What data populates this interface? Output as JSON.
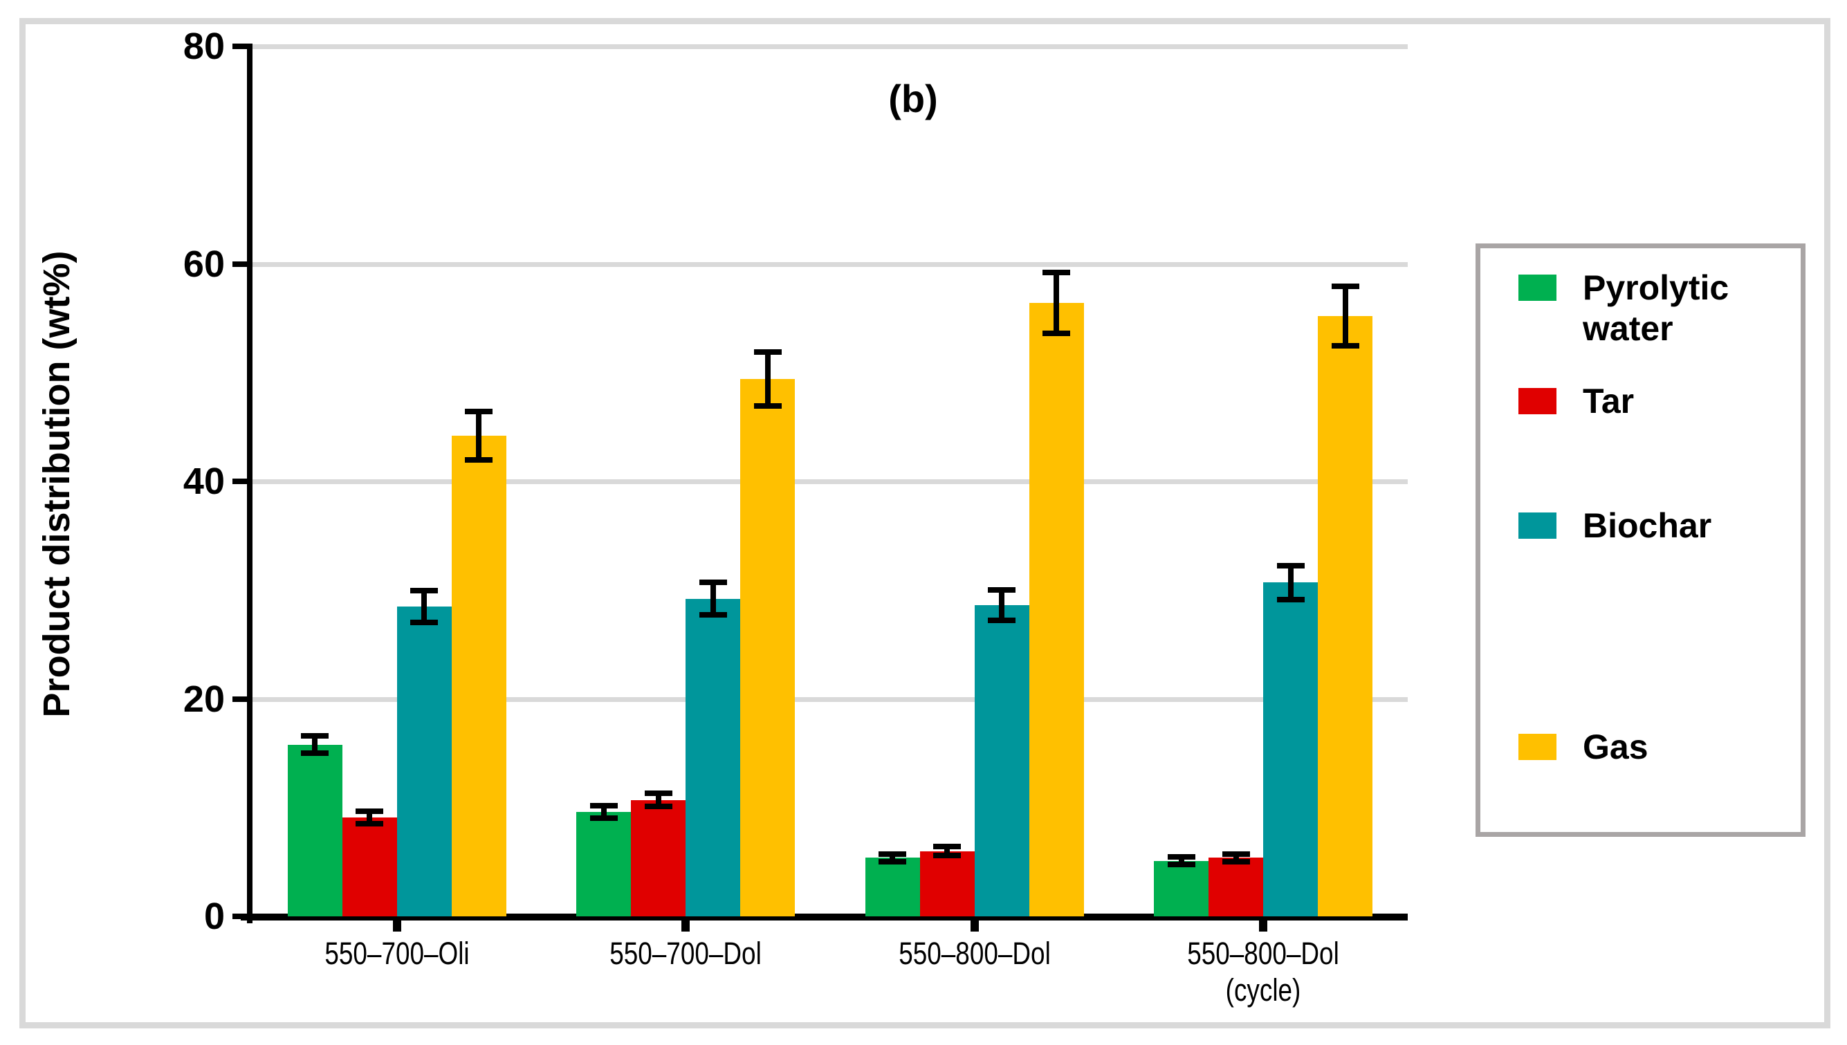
{
  "chart_data": {
    "type": "bar",
    "title": "(b)",
    "ylabel": "Product distribution (wt%)",
    "xlabel": "",
    "ylim": [
      0,
      80
    ],
    "yticks": [
      0,
      20,
      40,
      60,
      80
    ],
    "grid": true,
    "legend_position": "right",
    "categories": [
      "550–700–Oli",
      "550–700–Dol",
      "550–800–Dol",
      "550–800–Dol (cycle)"
    ],
    "categories_lines": [
      [
        "550–700–Oli"
      ],
      [
        "550–700–Dol"
      ],
      [
        "550–800–Dol"
      ],
      [
        "550–800–Dol",
        "(cycle)"
      ]
    ],
    "series": [
      {
        "name": "Pyrolytic water",
        "color": "#00B050",
        "values": [
          15.8,
          9.6,
          5.4,
          5.1
        ],
        "errors": [
          0.8,
          0.55,
          0.35,
          0.35
        ]
      },
      {
        "name": "Tar",
        "color": "#E00000",
        "values": [
          9.1,
          10.7,
          6.0,
          5.4
        ],
        "errors": [
          0.55,
          0.6,
          0.4,
          0.35
        ]
      },
      {
        "name": "Biochar",
        "color": "#00969B",
        "values": [
          28.5,
          29.2,
          28.6,
          30.7
        ],
        "errors": [
          1.45,
          1.5,
          1.4,
          1.55
        ]
      },
      {
        "name": "Gas",
        "color": "#FFC000",
        "values": [
          44.2,
          49.4,
          56.4,
          55.2
        ],
        "errors": [
          2.2,
          2.5,
          2.8,
          2.75
        ]
      }
    ]
  },
  "legend": {
    "items": [
      {
        "label": "Pyrolytic water",
        "color": "#00B050"
      },
      {
        "label": "Tar",
        "color": "#E00000"
      },
      {
        "label": "Biochar",
        "color": "#00969B"
      },
      {
        "label": "Gas",
        "color": "#FFC000"
      }
    ]
  },
  "colors": {
    "gridline": "#D9D9D9",
    "figure_border": "#D9D9D9",
    "legend_border": "#A9A5A5",
    "axis": "#000000"
  }
}
